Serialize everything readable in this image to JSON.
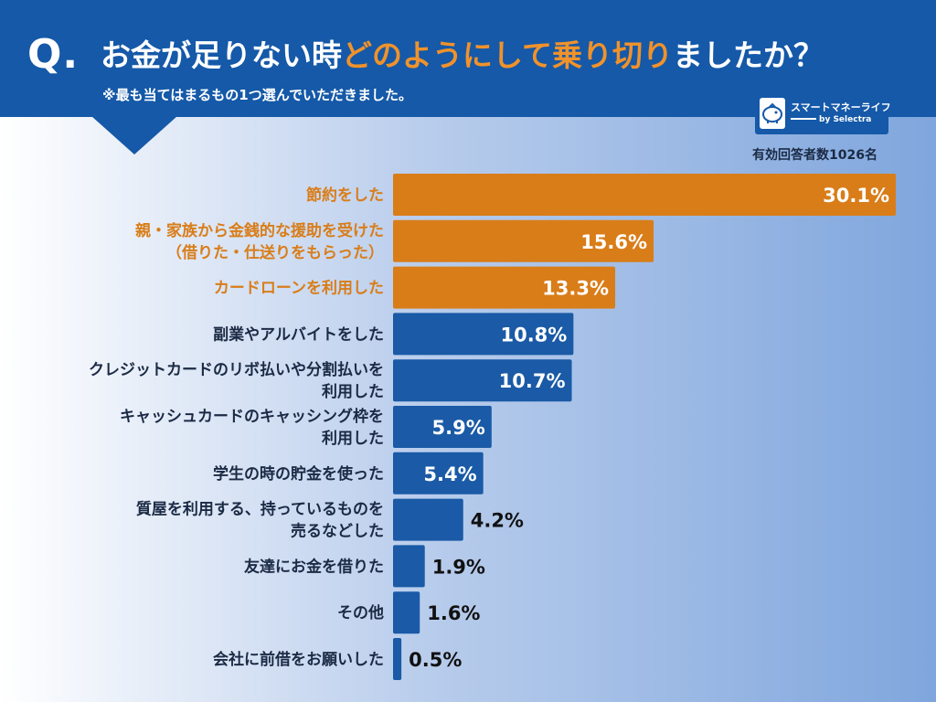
{
  "header": {
    "q_mark": "Q.",
    "title_part1": "お金が足りない時",
    "title_highlight": "どのようにして乗り切り",
    "title_part2": "ましたか？",
    "subtitle": "※最も当てはまるもの1つ選んでいただきました。"
  },
  "logo": {
    "brand": "スマートマネーライフ",
    "by": "by",
    "partner": "Selectra"
  },
  "respondents_label": "有効回答者数1026名",
  "colors": {
    "header_bg": "#1559a8",
    "highlight": "#f0922b",
    "bar_top": "#d97d19",
    "bar_other": "#1a5aa6",
    "label_top": "#d97d19",
    "label_other": "#1b2a44"
  },
  "chart_data": {
    "type": "bar",
    "orientation": "horizontal",
    "title": "お金が足りない時どのようにして乗り切りましたか？",
    "unit": "%",
    "xlim": [
      0,
      30.1
    ],
    "highlight_top_n": 3,
    "categories": [
      [
        "節約をした"
      ],
      [
        "親・家族から金銭的な援助を受けた",
        "（借りた・仕送りをもらった）"
      ],
      [
        "カードローンを利用した"
      ],
      [
        "副業やアルバイトをした"
      ],
      [
        "クレジットカードのリボ払いや分割払いを",
        "利用した"
      ],
      [
        "キャッシュカードのキャッシング枠を",
        "利用した"
      ],
      [
        "学生の時の貯金を使った"
      ],
      [
        "質屋を利用する、持っているものを",
        "売るなどした"
      ],
      [
        "友達にお金を借りた"
      ],
      [
        "その他"
      ],
      [
        "会社に前借をお願いした"
      ]
    ],
    "values": [
      30.1,
      15.6,
      13.3,
      10.8,
      10.7,
      5.9,
      5.4,
      4.2,
      1.9,
      1.6,
      0.5
    ],
    "value_labels": [
      "30.1%",
      "15.6%",
      "13.3%",
      "10.8%",
      "10.7%",
      "5.9%",
      "5.4%",
      "4.2%",
      "1.9%",
      "1.6%",
      "0.5%"
    ]
  }
}
